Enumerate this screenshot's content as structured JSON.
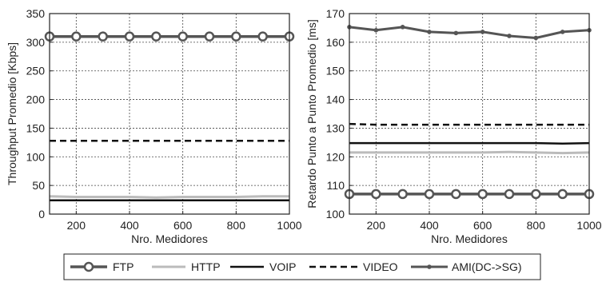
{
  "chart_data": [
    {
      "type": "line",
      "xlabel": "Nro. Medidores",
      "ylabel": "Throughput Promedio [Kbps]",
      "xlim": [
        100,
        1000
      ],
      "ylim": [
        0,
        350
      ],
      "xticks": [
        200,
        400,
        600,
        800,
        1000
      ],
      "yticks": [
        0,
        50,
        100,
        150,
        200,
        250,
        300,
        350
      ],
      "grid": true,
      "x": [
        100,
        200,
        300,
        400,
        500,
        600,
        700,
        800,
        900,
        1000
      ],
      "series": [
        {
          "name": "FTP",
          "color": "#555555",
          "values": [
            310,
            310,
            310,
            310,
            310,
            310,
            310,
            310,
            310,
            310
          ]
        },
        {
          "name": "HTTP",
          "color": "#bbbbbb",
          "values": [
            31,
            30,
            30,
            30,
            29,
            30,
            30,
            30,
            31,
            31
          ]
        },
        {
          "name": "VOIP",
          "color": "#111111",
          "values": [
            24,
            24,
            24,
            24,
            24,
            24,
            24,
            24,
            24,
            24
          ]
        },
        {
          "name": "VIDEO",
          "color": "#111111",
          "values": [
            128,
            128,
            128,
            128,
            128,
            128,
            128,
            128,
            128,
            128
          ]
        }
      ]
    },
    {
      "type": "line",
      "xlabel": "Nro. Medidores",
      "ylabel": "Retardo Punto a Punto Promedio [ms]",
      "xlim": [
        100,
        1000
      ],
      "ylim": [
        100,
        170
      ],
      "xticks": [
        200,
        400,
        600,
        800,
        1000
      ],
      "yticks": [
        100,
        110,
        120,
        130,
        140,
        150,
        160,
        170
      ],
      "grid": true,
      "x": [
        100,
        200,
        300,
        400,
        500,
        600,
        700,
        800,
        900,
        1000
      ],
      "series": [
        {
          "name": "FTP",
          "color": "#555555",
          "values": [
            107,
            107,
            107,
            107,
            107,
            107,
            107,
            107,
            107,
            107
          ]
        },
        {
          "name": "HTTP",
          "color": "#bbbbbb",
          "values": [
            121.5,
            121.5,
            121.5,
            121.5,
            121.5,
            121.5,
            121.7,
            121.5,
            121.3,
            121.5
          ]
        },
        {
          "name": "VOIP",
          "color": "#111111",
          "values": [
            124.8,
            124.8,
            124.8,
            124.8,
            124.8,
            124.8,
            124.8,
            124.8,
            124.6,
            124.8
          ]
        },
        {
          "name": "VIDEO",
          "color": "#111111",
          "values": [
            131.5,
            131.2,
            131.2,
            131.2,
            131.2,
            131.2,
            131.2,
            131.2,
            131.2,
            131.2
          ]
        },
        {
          "name": "AMI(DC->SG)",
          "color": "#555555",
          "values": [
            165.3,
            164.2,
            165.3,
            163.6,
            163.2,
            163.6,
            162.2,
            161.5,
            163.6,
            164.2
          ]
        }
      ]
    }
  ],
  "legend": {
    "position": "bottom",
    "items": [
      {
        "label": "FTP",
        "style": "circle-thick"
      },
      {
        "label": "HTTP",
        "style": "light"
      },
      {
        "label": "VOIP",
        "style": "solid"
      },
      {
        "label": "VIDEO",
        "style": "dashed"
      },
      {
        "label": "AMI(DC->SG)",
        "style": "star"
      }
    ]
  }
}
